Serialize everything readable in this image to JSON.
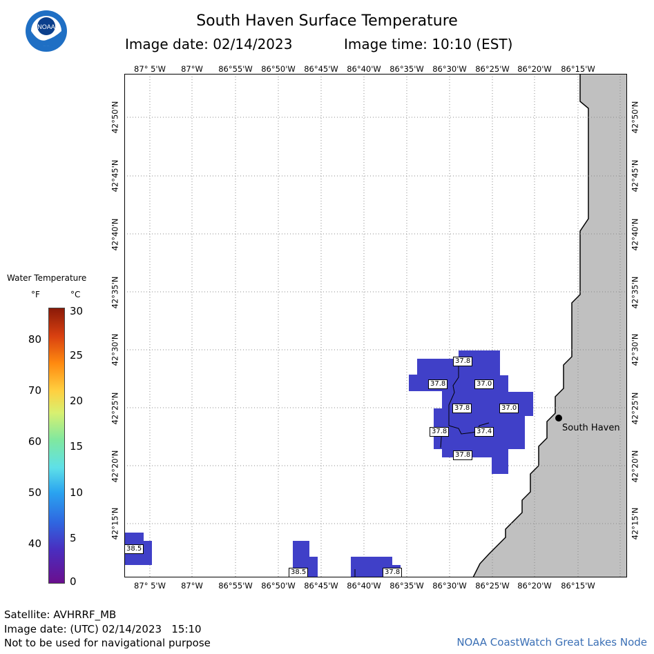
{
  "header": {
    "title": "South Haven Surface Temperature",
    "image_date": "Image date: 02/14/2023",
    "image_time": "Image time: 10:10 (EST)",
    "logo_text": "NOAA"
  },
  "map": {
    "lon_labels": [
      "87° 5'W",
      "87°W",
      "86°55'W",
      "86°50'W",
      "86°45'W",
      "86°40'W",
      "86°35'W",
      "86°30'W",
      "86°25'W",
      "86°20'W",
      "86°15'W"
    ],
    "lat_labels": [
      "42°50'N",
      "42°45'N",
      "42°40'N",
      "42°35'N",
      "42°30'N",
      "42°25'N",
      "42°20'N",
      "42°15'N"
    ],
    "city": "South Haven",
    "temp_labels": [
      "37.8",
      "37.8",
      "37.0",
      "37.8",
      "37.0",
      "37.8",
      "37.4",
      "37.8",
      "38.5",
      "38.5",
      "37.8"
    ],
    "colors": {
      "water_temp_fill": "#4040c8",
      "land": "#c0c0c0",
      "grid": "#888888"
    }
  },
  "legend": {
    "title": "Water Temperature",
    "unit_f": "°F",
    "unit_c": "°C",
    "f_ticks": [
      "80",
      "70",
      "60",
      "50",
      "40"
    ],
    "c_ticks": [
      "30",
      "25",
      "20",
      "15",
      "10",
      "5",
      "0"
    ]
  },
  "footer": {
    "satellite": "Satellite: AVHRRF_MB",
    "utc_date": "Image date: (UTC) 02/14/2023   15:10",
    "disclaimer": "Not to be used for navigational purpose",
    "credit": "NOAA CoastWatch Great Lakes Node"
  }
}
